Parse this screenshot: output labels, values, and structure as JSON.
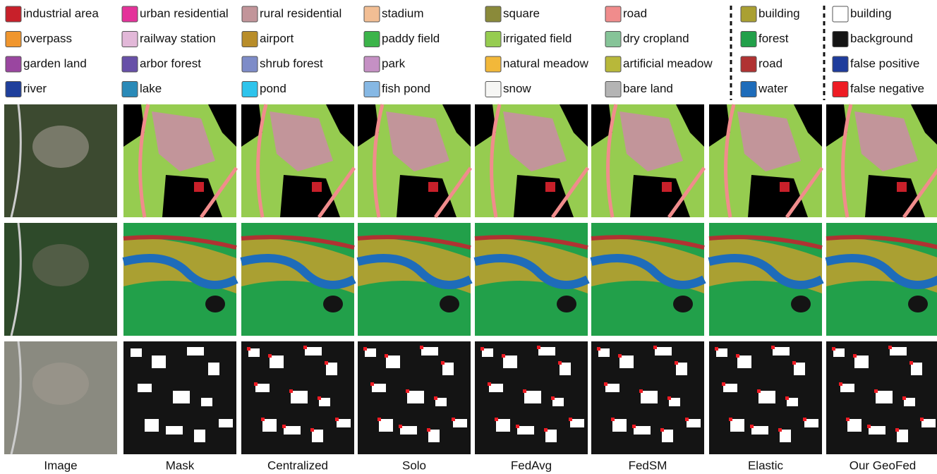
{
  "legend": {
    "columns": [
      {
        "items": [
          {
            "label": "industrial area",
            "color": "#c8202a"
          },
          {
            "label": "overpass",
            "color": "#f0962e"
          },
          {
            "label": "garden land",
            "color": "#9a46a0"
          },
          {
            "label": "river",
            "color": "#1f3f9c"
          }
        ]
      },
      {
        "items": [
          {
            "label": "urban residential",
            "color": "#e4329a"
          },
          {
            "label": "railway station",
            "color": "#e2b8d8"
          },
          {
            "label": "arbor forest",
            "color": "#6750a8"
          },
          {
            "label": "lake",
            "color": "#2a8ab8"
          }
        ]
      },
      {
        "items": [
          {
            "label": "rural residential",
            "color": "#c2959a"
          },
          {
            "label": "airport",
            "color": "#b88d2a"
          },
          {
            "label": "shrub forest",
            "color": "#7e8cc8"
          },
          {
            "label": "pond",
            "color": "#2ec4ec"
          }
        ]
      },
      {
        "items": [
          {
            "label": "stadium",
            "color": "#f2be94"
          },
          {
            "label": "paddy field",
            "color": "#3cb44a"
          },
          {
            "label": "park",
            "color": "#c590c4"
          },
          {
            "label": "fish pond",
            "color": "#86b8e4"
          }
        ]
      },
      {
        "items": [
          {
            "label": "square",
            "color": "#8a8a3a"
          },
          {
            "label": "irrigated field",
            "color": "#96cc50"
          },
          {
            "label": "natural meadow",
            "color": "#f2b83a"
          },
          {
            "label": "snow",
            "color": "#f6f6f4"
          }
        ]
      },
      {
        "items": [
          {
            "label": "road",
            "color": "#f08c8c"
          },
          {
            "label": "dry cropland",
            "color": "#86c498"
          },
          {
            "label": "artificial meadow",
            "color": "#b8b83a"
          },
          {
            "label": "bare land",
            "color": "#b4b4b4"
          }
        ]
      },
      {
        "items": [
          {
            "label": "building",
            "color": "#aaa032"
          },
          {
            "label": "forest",
            "color": "#22a04a"
          },
          {
            "label": "road",
            "color": "#b03232"
          },
          {
            "label": "water",
            "color": "#1e6cba"
          }
        ]
      },
      {
        "items": [
          {
            "label": "building",
            "color": "#ffffff"
          },
          {
            "label": "background",
            "color": "#141414"
          },
          {
            "label": "false positive",
            "color": "#1e3c9c"
          },
          {
            "label": "false negative",
            "color": "#ee1c24"
          }
        ]
      }
    ]
  },
  "columns": [
    "Image",
    "Mask",
    "Centralized",
    "Solo",
    "FedAvg",
    "FedSM",
    "Elastic",
    "Our GeoFed"
  ]
}
